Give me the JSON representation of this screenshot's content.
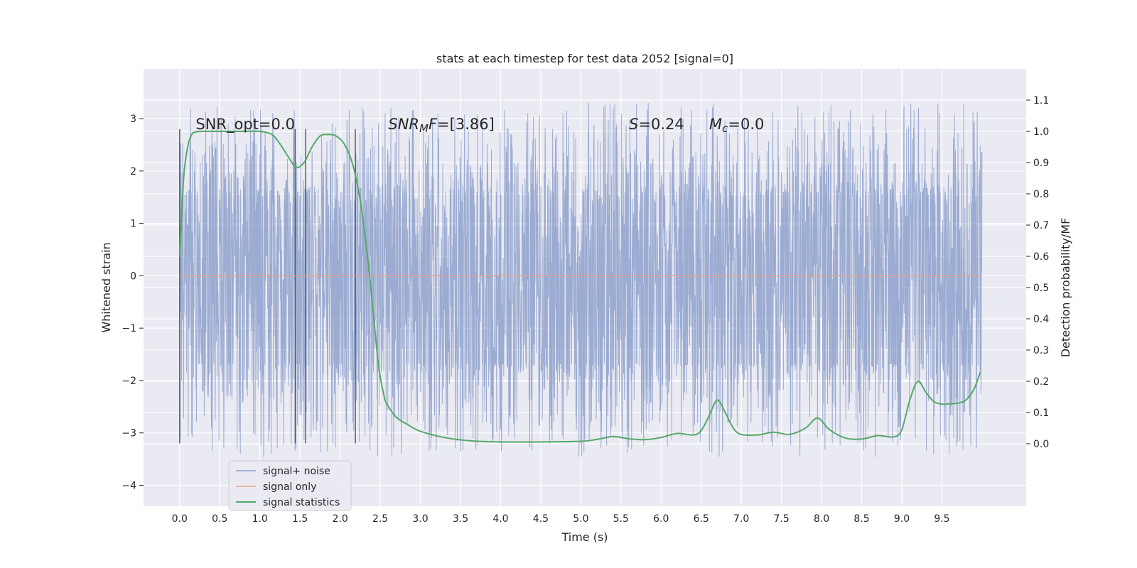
{
  "chart_data": {
    "type": "line",
    "title": "stats at each timestep for test data 2052 [signal=0]",
    "xlabel": "Time (s)",
    "ylabel": "Whitened strain",
    "ylabel_right": "Detection probability/MF",
    "xlim": [
      -0.45,
      10.55
    ],
    "ylim": [
      -4.4,
      3.95
    ],
    "ylim_right": [
      -0.2,
      1.2
    ],
    "x_ticks": [
      0.0,
      0.5,
      1.0,
      1.5,
      2.0,
      2.5,
      3.0,
      3.5,
      4.0,
      4.5,
      5.0,
      5.5,
      6.0,
      6.5,
      7.0,
      7.5,
      8.0,
      8.5,
      9.0,
      9.5
    ],
    "x_tick_labels": [
      "0.0",
      "0.5",
      "1.0",
      "1.5",
      "2.0",
      "2.5",
      "3.0",
      "3.5",
      "4.0",
      "4.5",
      "5.0",
      "5.5",
      "6.0",
      "6.5",
      "7.0",
      "7.5",
      "8.0",
      "8.5",
      "9.0",
      "9.5"
    ],
    "y_ticks": [
      -4,
      -3,
      -2,
      -1,
      0,
      1,
      2,
      3
    ],
    "y_tick_labels": [
      "−4",
      "−3",
      "−2",
      "−1",
      "0",
      "1",
      "2",
      "3"
    ],
    "y_right_ticks": [
      0.0,
      0.1,
      0.2,
      0.3,
      0.4,
      0.5,
      0.6,
      0.7,
      0.8,
      0.9,
      1.0,
      1.1
    ],
    "y_right_tick_labels": [
      "0.0",
      "0.1",
      "0.2",
      "0.3",
      "0.4",
      "0.5",
      "0.6",
      "0.7",
      "0.8",
      "0.9",
      "1.0",
      "1.1"
    ],
    "grid": true,
    "legend_position": "lower-left",
    "legend": [
      {
        "label": "signal+ noise",
        "color": "#8da0cb"
      },
      {
        "label": "signal only",
        "color": "#e8a088"
      },
      {
        "label": "signal statistics",
        "color": "#55a868"
      }
    ],
    "series": [
      {
        "name": "signal+ noise",
        "axis": "left",
        "color": "#8da0cb",
        "style": "noise",
        "x_range": [
          0.0,
          10.0
        ],
        "core_range": [
          -1.5,
          1.6
        ],
        "spike_max": [
          3.6,
          -4.05
        ]
      },
      {
        "name": "signal only",
        "axis": "left",
        "color": "#e8a088",
        "x": [
          0.0,
          10.0
        ],
        "y": [
          0.0,
          0.0
        ]
      },
      {
        "name": "signal statistics",
        "axis": "right",
        "color": "#55a868",
        "x": [
          0.0,
          0.05,
          0.1,
          0.15,
          0.2,
          0.3,
          0.5,
          0.8,
          1.0,
          1.15,
          1.25,
          1.35,
          1.45,
          1.55,
          1.65,
          1.75,
          1.85,
          1.95,
          2.05,
          2.15,
          2.25,
          2.35,
          2.42,
          2.48,
          2.55,
          2.6,
          2.7,
          2.85,
          3.0,
          3.3,
          3.6,
          4.0,
          4.5,
          5.0,
          5.2,
          5.4,
          5.6,
          5.8,
          6.0,
          6.2,
          6.4,
          6.5,
          6.6,
          6.7,
          6.8,
          6.9,
          7.0,
          7.2,
          7.4,
          7.6,
          7.8,
          7.95,
          8.1,
          8.3,
          8.5,
          8.7,
          8.9,
          9.0,
          9.1,
          9.2,
          9.3,
          9.4,
          9.5,
          9.6,
          9.7,
          9.8,
          9.9,
          9.98
        ],
        "y": [
          0.6,
          0.85,
          0.95,
          0.99,
          0.998,
          1.0,
          1.0,
          1.0,
          1.0,
          0.99,
          0.96,
          0.92,
          0.885,
          0.9,
          0.95,
          0.985,
          0.99,
          0.985,
          0.96,
          0.9,
          0.78,
          0.58,
          0.4,
          0.25,
          0.15,
          0.12,
          0.085,
          0.06,
          0.04,
          0.02,
          0.01,
          0.006,
          0.006,
          0.008,
          0.014,
          0.023,
          0.016,
          0.013,
          0.02,
          0.033,
          0.028,
          0.042,
          0.09,
          0.14,
          0.1,
          0.05,
          0.03,
          0.028,
          0.037,
          0.03,
          0.05,
          0.082,
          0.045,
          0.018,
          0.015,
          0.026,
          0.022,
          0.045,
          0.14,
          0.2,
          0.165,
          0.135,
          0.127,
          0.128,
          0.13,
          0.14,
          0.175,
          0.23
        ]
      }
    ],
    "vertical_lines": [
      {
        "x": 0.0,
        "y_range": [
          -3.2,
          2.8
        ]
      },
      {
        "x": 1.44,
        "y_range": [
          -3.2,
          2.8
        ]
      },
      {
        "x": 1.57,
        "y_range": [
          -3.2,
          2.8
        ]
      },
      {
        "x": 2.19,
        "y_range": [
          -3.2,
          2.8
        ]
      }
    ],
    "annotations": [
      {
        "x": 0.2,
        "y": 2.8,
        "parts": [
          {
            "t": "SNR_opt=0.0"
          }
        ]
      },
      {
        "x": 2.6,
        "y": 2.8,
        "parts": [
          {
            "t": "SNR",
            "i": true
          },
          {
            "t": "M",
            "i": true,
            "sub": true
          },
          {
            "t": "F",
            "i": true
          },
          {
            "t": "=[3.86]"
          }
        ]
      },
      {
        "x": 5.6,
        "y": 2.8,
        "parts": [
          {
            "t": "S",
            "i": true
          },
          {
            "t": "=0.24"
          }
        ]
      },
      {
        "x": 6.6,
        "y": 2.8,
        "parts": [
          {
            "t": "M",
            "i": true
          },
          {
            "t": "c",
            "i": true,
            "sub": true
          },
          {
            "t": "=0.0"
          }
        ]
      }
    ]
  }
}
